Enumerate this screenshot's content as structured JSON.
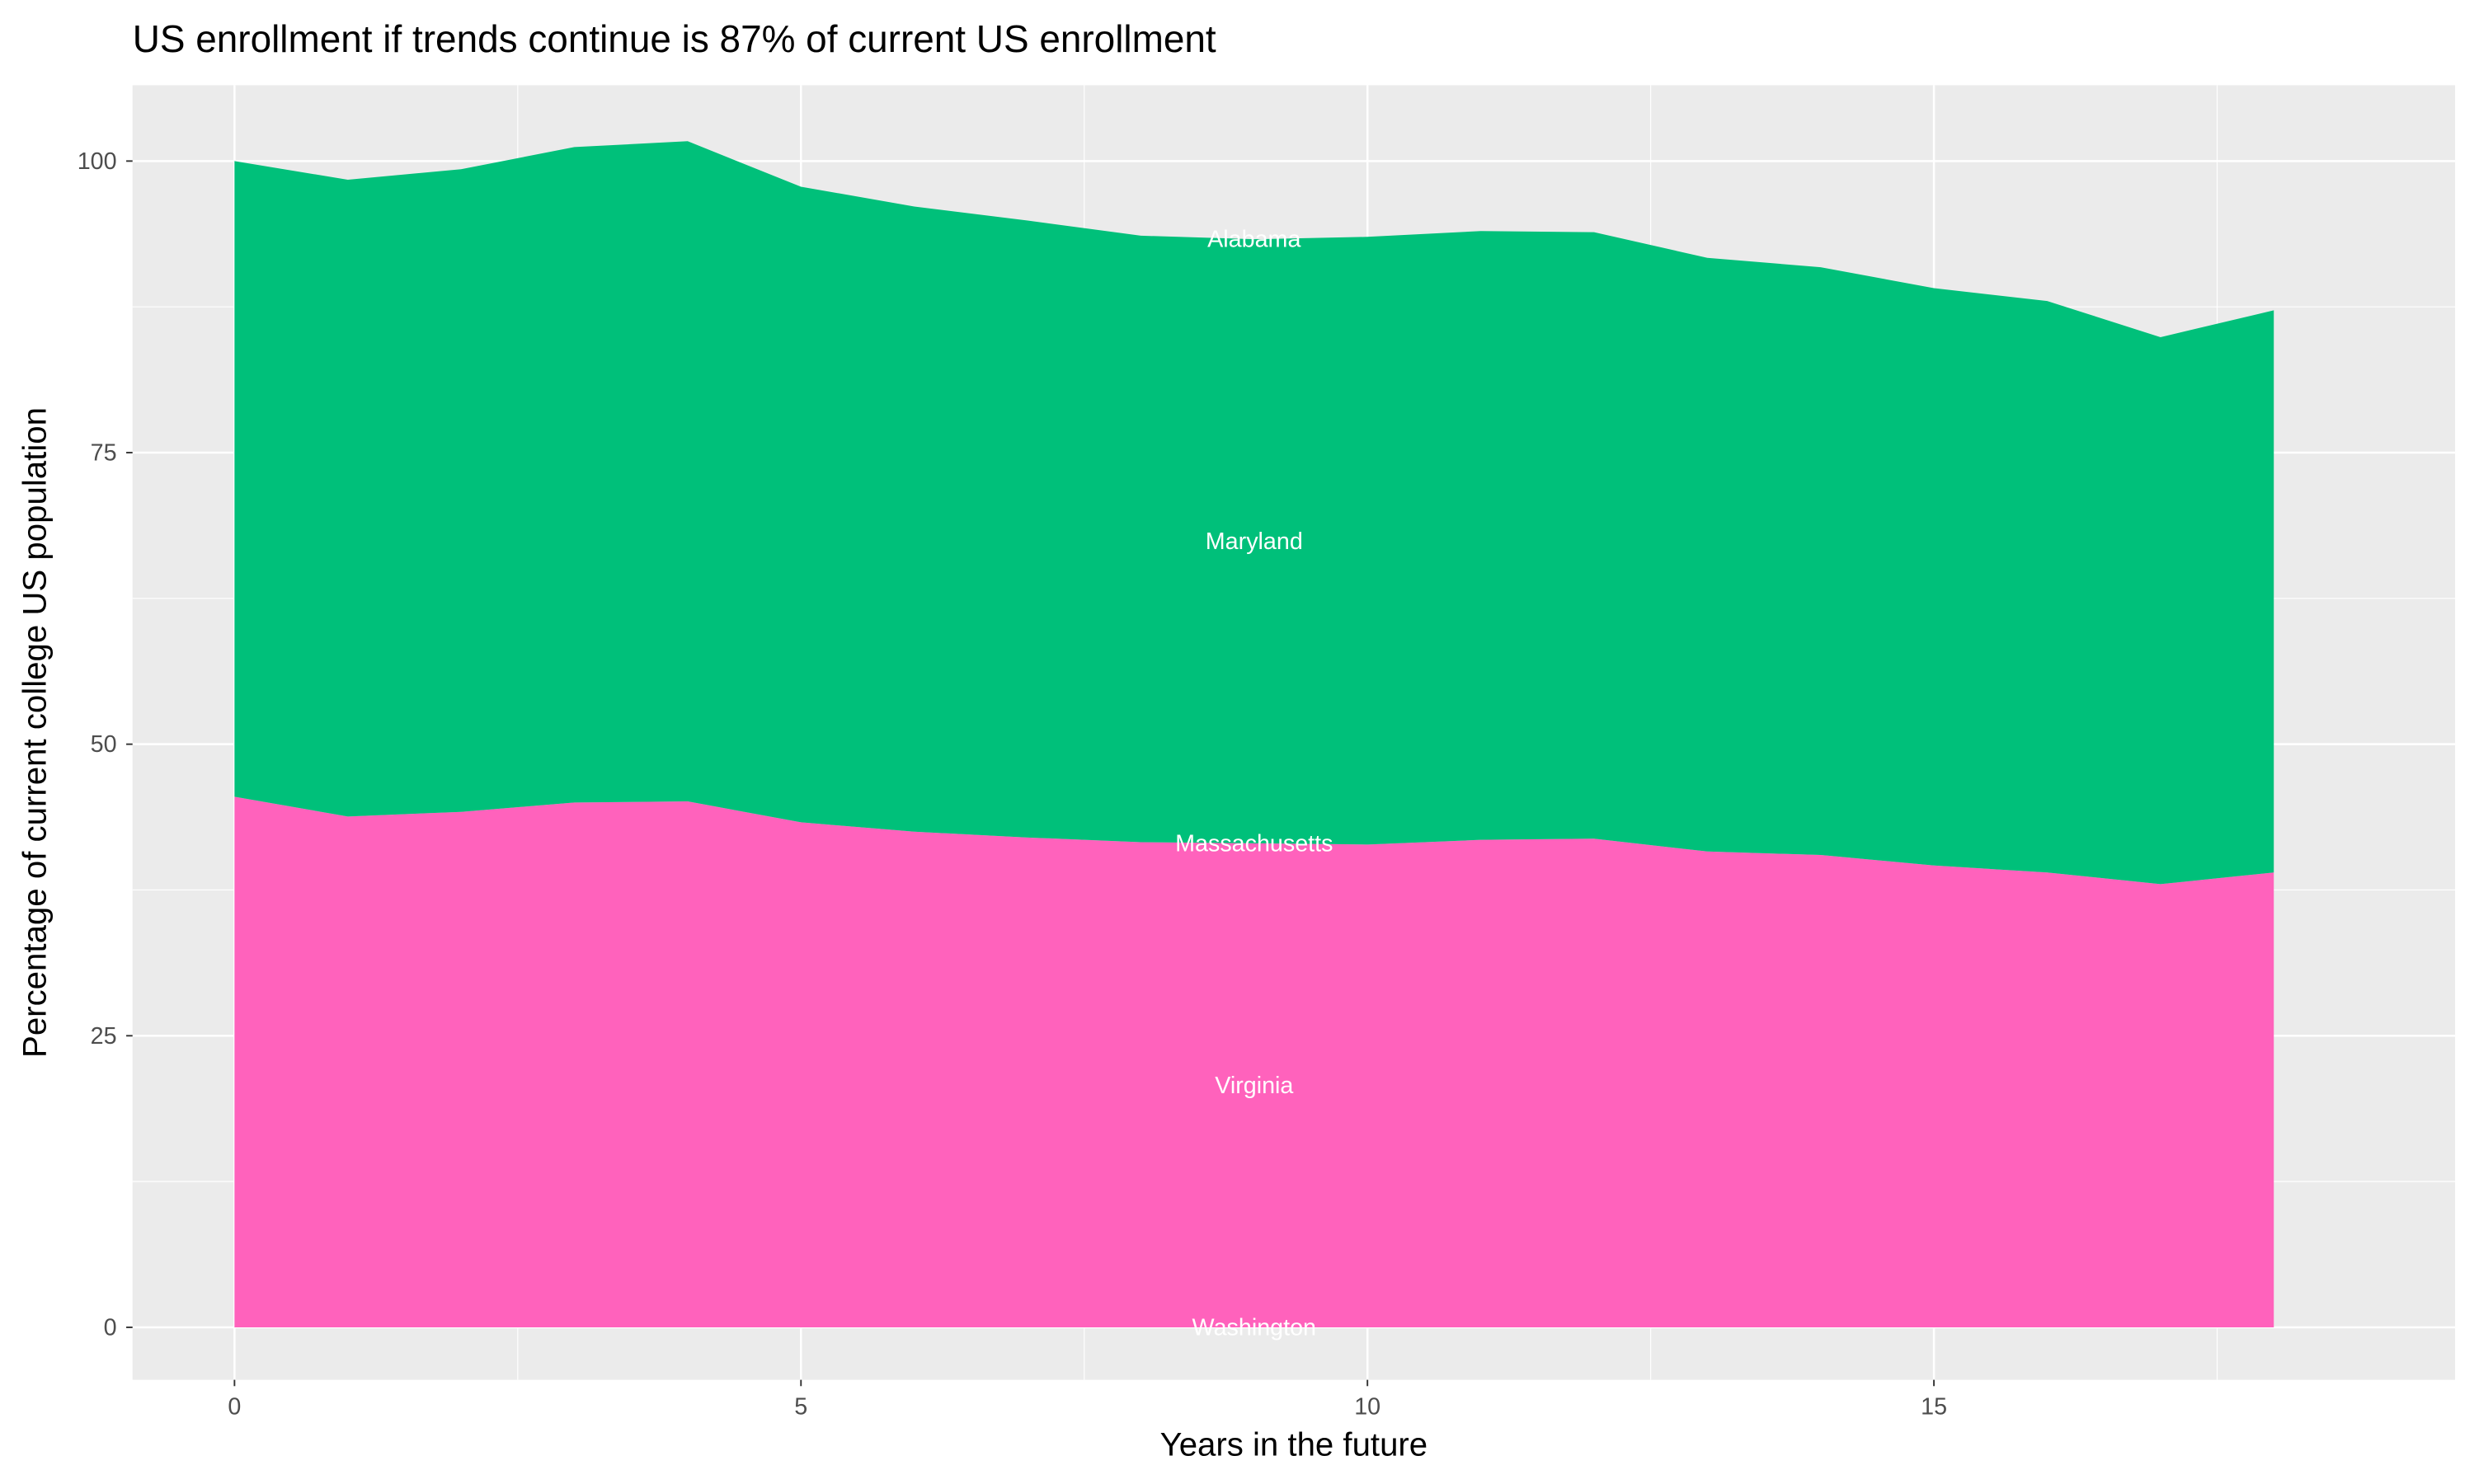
{
  "chart_data": {
    "type": "area",
    "stacked": true,
    "title": "US enrollment if trends continue is 87% of current US enrollment",
    "xlabel": "Years in the future",
    "ylabel": "Percentage of current college US population",
    "xlim": [
      -0.9,
      19.6
    ],
    "ylim": [
      -4.5,
      106.5
    ],
    "x_ticks": [
      0,
      5,
      10,
      15
    ],
    "y_ticks": [
      0,
      25,
      50,
      75,
      100
    ],
    "grid": true,
    "background": "#EBEBEB",
    "label_x": 9,
    "x": [
      0,
      1,
      2,
      3,
      4,
      5,
      6,
      7,
      8,
      9,
      10,
      11,
      12,
      13,
      14,
      15,
      16,
      17,
      18
    ],
    "series": [
      {
        "name": "Washington",
        "color": "#F8766D",
        "values": [
          0,
          0,
          0,
          0,
          0,
          0,
          0,
          0,
          0,
          0,
          0,
          0,
          0,
          0,
          0,
          0,
          0,
          0,
          0
        ]
      },
      {
        "name": "Virginia",
        "color": "#FF62BC",
        "values": [
          45.5,
          43.8,
          44.2,
          45.0,
          45.1,
          43.3,
          42.5,
          42.0,
          41.6,
          41.5,
          41.4,
          41.8,
          41.9,
          40.8,
          40.5,
          39.6,
          39.0,
          38.0,
          39.0
        ]
      },
      {
        "name": "Massachusetts",
        "color": "#619CFF",
        "values": [
          0,
          0,
          0,
          0,
          0,
          0,
          0,
          0,
          0,
          0,
          0,
          0,
          0,
          0,
          0,
          0,
          0,
          0,
          0
        ]
      },
      {
        "name": "Maryland",
        "color": "#00C07A",
        "values": [
          54.5,
          54.6,
          55.1,
          56.2,
          56.6,
          54.5,
          53.6,
          52.9,
          52.0,
          51.8,
          52.1,
          52.2,
          52.0,
          50.9,
          50.4,
          49.5,
          49.0,
          46.9,
          48.2
        ]
      },
      {
        "name": "Alabama",
        "color": "#A3A500",
        "values": [
          0,
          0,
          0,
          0,
          0,
          0,
          0,
          0,
          0,
          0,
          0,
          0,
          0,
          0,
          0,
          0,
          0,
          0,
          0
        ]
      }
    ]
  }
}
